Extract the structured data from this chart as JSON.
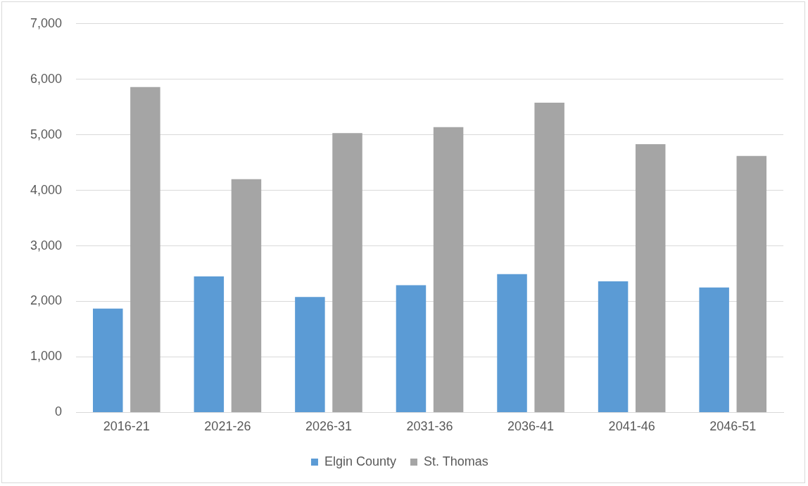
{
  "chart_data": {
    "type": "bar",
    "categories": [
      "2016-21",
      "2021-26",
      "2026-31",
      "2031-36",
      "2036-41",
      "2041-46",
      "2046-51"
    ],
    "series": [
      {
        "name": "Elgin County",
        "color": "#5b9bd5",
        "values": [
          1870,
          2450,
          2080,
          2290,
          2490,
          2360,
          2250
        ]
      },
      {
        "name": "St. Thomas",
        "color": "#a5a5a5",
        "values": [
          5860,
          4200,
          5030,
          5140,
          5580,
          4830,
          4620
        ]
      }
    ],
    "ylim": [
      0,
      7000
    ],
    "yticks": [
      {
        "value": 0,
        "label": "0"
      },
      {
        "value": 1000,
        "label": "1,000"
      },
      {
        "value": 2000,
        "label": "2,000"
      },
      {
        "value": 3000,
        "label": "3,000"
      },
      {
        "value": 4000,
        "label": "4,000"
      },
      {
        "value": 5000,
        "label": "5,000"
      },
      {
        "value": 6000,
        "label": "6,000"
      },
      {
        "value": 7000,
        "label": "7,000"
      }
    ],
    "grid": "y",
    "legend": "bottom"
  }
}
